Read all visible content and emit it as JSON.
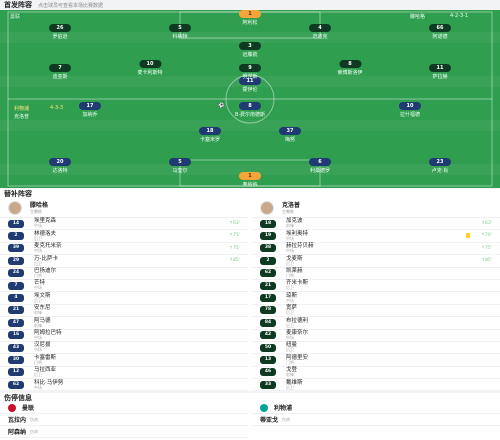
{
  "header": {
    "title": "首发阵容",
    "subtitle": "点击球员可查看本场比赛数据"
  },
  "pitch": {
    "home": {
      "team": "曼联",
      "formation": "4-2-3-1",
      "coach": "滕哈格"
    },
    "away": {
      "team": "利物浦",
      "formation": "4-3-3",
      "coach": "克洛普"
    },
    "home_players": [
      {
        "num": "1",
        "name": "奥纳纳",
        "gk": true
      },
      {
        "num": "20",
        "name": "达洛特"
      },
      {
        "num": "5",
        "name": "马奎尔"
      },
      {
        "num": "6",
        "name": "利桑德罗"
      },
      {
        "num": "23",
        "name": "卢克·肖"
      },
      {
        "num": "18",
        "name": "卡塞米罗"
      },
      {
        "num": "37",
        "name": "梅努"
      },
      {
        "num": "17",
        "name": "加纳乔"
      },
      {
        "num": "8",
        "name": "B·费尔南德斯"
      },
      {
        "num": "10",
        "name": "拉什福德"
      },
      {
        "num": "11",
        "name": "霍伊伦"
      }
    ],
    "away_players": [
      {
        "num": "1",
        "name": "阿利松",
        "gk": true
      },
      {
        "num": "66",
        "name": "阿诺德"
      },
      {
        "num": "4",
        "name": "范迪克"
      },
      {
        "num": "5",
        "name": "科纳特"
      },
      {
        "num": "26",
        "name": "罗伯逊"
      },
      {
        "num": "3",
        "name": "远藤航"
      },
      {
        "num": "10",
        "name": "麦卡利斯特"
      },
      {
        "num": "8",
        "name": "索博斯洛伊"
      },
      {
        "num": "11",
        "name": "萨拉赫"
      },
      {
        "num": "9",
        "name": "努涅斯"
      },
      {
        "num": "7",
        "name": "迪亚斯"
      }
    ]
  },
  "subs": {
    "title": "替补阵容",
    "home_coach": {
      "name": "滕哈格",
      "role": "主教练"
    },
    "away_coach": {
      "name": "克洛普",
      "role": "主教练"
    },
    "home": [
      {
        "num": "14",
        "name": "埃里克森",
        "pos": "中场",
        "info": "↑63'"
      },
      {
        "num": "2",
        "name": "林德洛夫",
        "pos": "后卫",
        "info": "↑75'"
      },
      {
        "num": "39",
        "name": "麦克托米奈",
        "pos": "中场",
        "info": "↑75'"
      },
      {
        "num": "29",
        "name": "万-比萨卡",
        "pos": "后卫",
        "info": "↑85'"
      },
      {
        "num": "24",
        "name": "巴扬迪尔",
        "pos": "门将",
        "info": ""
      },
      {
        "num": "7",
        "name": "芒特",
        "pos": "中场",
        "info": ""
      },
      {
        "num": "4",
        "name": "埃文斯",
        "pos": "后卫",
        "info": ""
      },
      {
        "num": "21",
        "name": "安东尼",
        "pos": "前锋",
        "info": ""
      },
      {
        "num": "47",
        "name": "阿马德",
        "pos": "前锋",
        "info": ""
      },
      {
        "num": "16",
        "name": "阿姆拉巴特",
        "pos": "中场",
        "info": ""
      },
      {
        "num": "43",
        "name": "汉尼拔",
        "pos": "中场",
        "info": ""
      },
      {
        "num": "30",
        "name": "卡塞雷斯",
        "pos": "门将",
        "info": ""
      },
      {
        "num": "12",
        "name": "马拉西亚",
        "pos": "后卫",
        "info": ""
      },
      {
        "num": "62",
        "name": "科比·马伊努",
        "pos": "中场",
        "info": ""
      }
    ],
    "away": [
      {
        "num": "18",
        "name": "加克波",
        "pos": "前锋",
        "info": "↑63'",
        "card": false
      },
      {
        "num": "19",
        "name": "埃利奥特",
        "pos": "中场",
        "info": "↑70'",
        "card": true
      },
      {
        "num": "38",
        "name": "赫拉芬贝赫",
        "pos": "中场",
        "info": "↑75'",
        "card": false
      },
      {
        "num": "2",
        "name": "戈麦斯",
        "pos": "后卫",
        "info": "↑85'",
        "card": false
      },
      {
        "num": "62",
        "name": "凯莱赫",
        "pos": "门将",
        "info": "",
        "card": false
      },
      {
        "num": "21",
        "name": "齐米卡斯",
        "pos": "后卫",
        "info": "",
        "card": false
      },
      {
        "num": "17",
        "name": "琼斯",
        "pos": "中场",
        "info": "",
        "card": false
      },
      {
        "num": "78",
        "name": "宽萨",
        "pos": "后卫",
        "info": "",
        "card": false
      },
      {
        "num": "84",
        "name": "布拉德利",
        "pos": "后卫",
        "info": "",
        "card": false
      },
      {
        "num": "42",
        "name": "麦康奈尔",
        "pos": "中场",
        "info": "",
        "card": false
      },
      {
        "num": "50",
        "name": "纽曼",
        "pos": "后卫",
        "info": "",
        "card": false
      },
      {
        "num": "13",
        "name": "阿德里安",
        "pos": "门将",
        "info": "",
        "card": false
      },
      {
        "num": "46",
        "name": "戈登",
        "pos": "前锋",
        "info": "",
        "card": false
      },
      {
        "num": "33",
        "name": "戴维斯",
        "pos": "后卫",
        "info": "",
        "card": false
      }
    ]
  },
  "injuries": {
    "title": "伤停信息",
    "home_team": "曼联",
    "away_team": "利物浦",
    "home": [
      {
        "name": "瓦拉内",
        "reason": "伤病"
      },
      {
        "name": "阿森纳",
        "reason": "伤病"
      }
    ],
    "away": [
      {
        "name": "蒂亚戈",
        "reason": "伤病"
      }
    ]
  },
  "colors": {
    "pitch": "#2f9e4f",
    "home": "#1f3b72",
    "away": "#0e3a22",
    "gk": "#f4a53a"
  }
}
